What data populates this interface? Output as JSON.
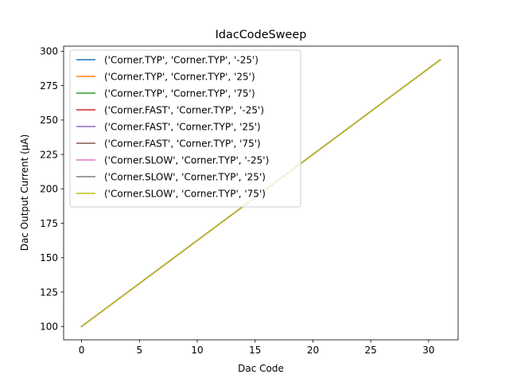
{
  "chart_data": {
    "type": "line",
    "title": "IdacCodeSweep",
    "xlabel": "Dac Code",
    "ylabel": "Dac Output Current (µA)",
    "xlim": [
      -1.55,
      32.55
    ],
    "ylim": [
      90.3,
      303.7
    ],
    "xticks": [
      0,
      5,
      10,
      15,
      20,
      25,
      30
    ],
    "yticks": [
      100,
      125,
      150,
      175,
      200,
      225,
      250,
      275,
      300
    ],
    "grid": false,
    "legend_position": "upper left",
    "x": [
      0,
      31
    ],
    "series": [
      {
        "name": "('Corner.TYP', 'Corner.TYP', '-25')",
        "color": "#1f77b4",
        "values": [
          100,
          293.75
        ]
      },
      {
        "name": "('Corner.TYP', 'Corner.TYP', '25')",
        "color": "#ff7f0e",
        "values": [
          100,
          293.75
        ]
      },
      {
        "name": "('Corner.TYP', 'Corner.TYP', '75')",
        "color": "#2ca02c",
        "values": [
          100,
          293.75
        ]
      },
      {
        "name": "('Corner.FAST', 'Corner.TYP', '-25')",
        "color": "#d62728",
        "values": [
          100,
          293.75
        ]
      },
      {
        "name": "('Corner.FAST', 'Corner.TYP', '25')",
        "color": "#9467bd",
        "values": [
          100,
          293.75
        ]
      },
      {
        "name": "('Corner.FAST', 'Corner.TYP', '75')",
        "color": "#8c564b",
        "values": [
          100,
          293.75
        ]
      },
      {
        "name": "('Corner.SLOW', 'Corner.TYP', '-25')",
        "color": "#e377c2",
        "values": [
          100,
          293.75
        ]
      },
      {
        "name": "('Corner.SLOW', 'Corner.TYP', '25')",
        "color": "#7f7f7f",
        "values": [
          100,
          293.75
        ]
      },
      {
        "name": "('Corner.SLOW', 'Corner.TYP', '75')",
        "color": "#bcbd22",
        "values": [
          100,
          293.75
        ]
      }
    ]
  }
}
